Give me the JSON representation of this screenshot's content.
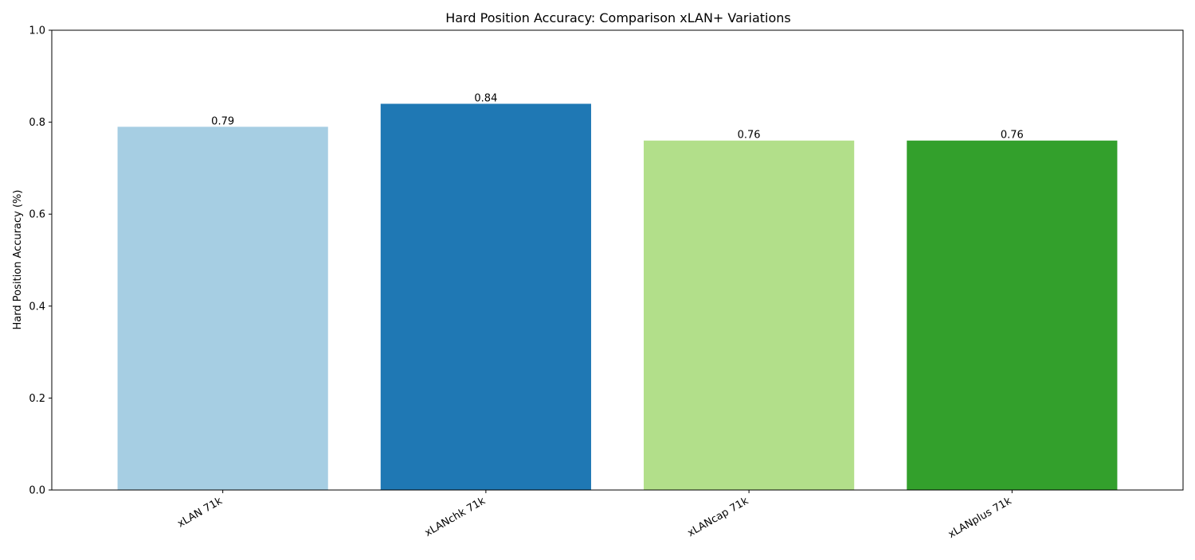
{
  "chart_data": {
    "type": "bar",
    "title": "Hard Position Accuracy: Comparison xLAN+ Variations",
    "xlabel": "",
    "ylabel": "Hard Position Accuracy (%)",
    "ylim": [
      0,
      1.0
    ],
    "yticks": [
      "0.0",
      "0.2",
      "0.4",
      "0.6",
      "0.8",
      "1.0"
    ],
    "categories": [
      "xLAN 71k",
      "xLANchk 71k",
      "xLANcap 71k",
      "xLANplus 71k"
    ],
    "values": [
      0.79,
      0.84,
      0.76,
      0.76
    ],
    "value_labels": [
      "0.79",
      "0.84",
      "0.76",
      "0.76"
    ],
    "colors": [
      "#a6cee3",
      "#1f78b4",
      "#b2df8a",
      "#33a02c"
    ],
    "grid": false,
    "legend": "none"
  }
}
